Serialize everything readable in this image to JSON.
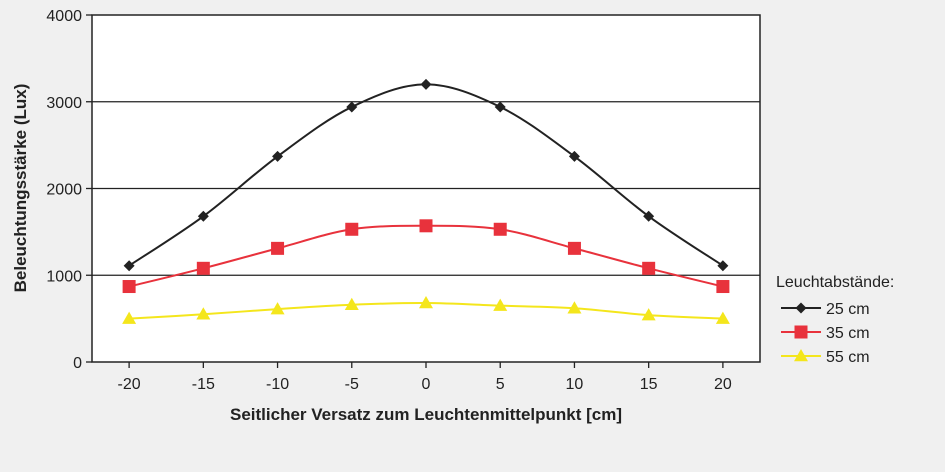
{
  "chart_data": {
    "type": "line",
    "title": "",
    "xlabel": "Seitlicher Versatz zum Leuchtenmittelpunkt [cm]",
    "ylabel": "Beleuchtungsstärke (Lux)",
    "x": [
      -20,
      -15,
      -10,
      -5,
      0,
      5,
      10,
      15,
      20
    ],
    "xticks": [
      "-20",
      "-15",
      "-10",
      "-5",
      "0",
      "5",
      "10",
      "15",
      "20"
    ],
    "yticks": [
      "0",
      "1000",
      "2000",
      "3000",
      "4000"
    ],
    "ylim": [
      0,
      4000
    ],
    "grid": "horizontal",
    "legend_title": "Leuchtabstände:",
    "legend_position": "right",
    "series": [
      {
        "name": "25 cm",
        "color": "#222222",
        "marker": "diamond",
        "values": [
          1110,
          1680,
          2370,
          2940,
          3200,
          2940,
          2370,
          1680,
          1110
        ]
      },
      {
        "name": "35 cm",
        "color": "#e8323c",
        "marker": "square",
        "values": [
          870,
          1080,
          1310,
          1530,
          1570,
          1530,
          1310,
          1080,
          870
        ]
      },
      {
        "name": "55 cm",
        "color": "#f4e61c",
        "marker": "triangle",
        "values": [
          500,
          550,
          610,
          660,
          680,
          650,
          620,
          540,
          500
        ]
      }
    ]
  }
}
